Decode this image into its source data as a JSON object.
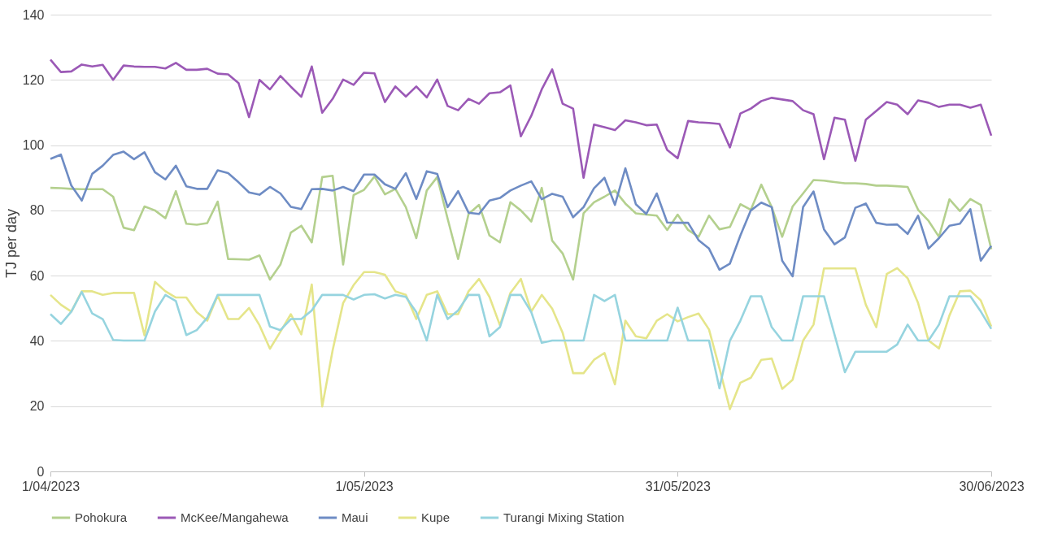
{
  "chart_data": {
    "type": "line",
    "ylabel": "TJ per day",
    "x": [
      "2023-04-01",
      "2023-04-02",
      "2023-04-03",
      "2023-04-04",
      "2023-04-05",
      "2023-04-06",
      "2023-04-07",
      "2023-04-08",
      "2023-04-09",
      "2023-04-10",
      "2023-04-11",
      "2023-04-12",
      "2023-04-13",
      "2023-04-14",
      "2023-04-15",
      "2023-04-16",
      "2023-04-17",
      "2023-04-18",
      "2023-04-19",
      "2023-04-20",
      "2023-04-21",
      "2023-04-22",
      "2023-04-23",
      "2023-04-24",
      "2023-04-25",
      "2023-04-26",
      "2023-04-27",
      "2023-04-28",
      "2023-04-29",
      "2023-04-30",
      "2023-05-01",
      "2023-05-02",
      "2023-05-03",
      "2023-05-04",
      "2023-05-05",
      "2023-05-06",
      "2023-05-07",
      "2023-05-08",
      "2023-05-09",
      "2023-05-10",
      "2023-05-11",
      "2023-05-12",
      "2023-05-13",
      "2023-05-14",
      "2023-05-15",
      "2023-05-16",
      "2023-05-17",
      "2023-05-18",
      "2023-05-19",
      "2023-05-20",
      "2023-05-21",
      "2023-05-22",
      "2023-05-23",
      "2023-05-24",
      "2023-05-25",
      "2023-05-26",
      "2023-05-27",
      "2023-05-28",
      "2023-05-29",
      "2023-05-30",
      "2023-05-31",
      "2023-06-01",
      "2023-06-02",
      "2023-06-03",
      "2023-06-04",
      "2023-06-05",
      "2023-06-06",
      "2023-06-07",
      "2023-06-08",
      "2023-06-09",
      "2023-06-10",
      "2023-06-11",
      "2023-06-12",
      "2023-06-13",
      "2023-06-14",
      "2023-06-15",
      "2023-06-16",
      "2023-06-17",
      "2023-06-18",
      "2023-06-19",
      "2023-06-20",
      "2023-06-21",
      "2023-06-22",
      "2023-06-23",
      "2023-06-24",
      "2023-06-25",
      "2023-06-26",
      "2023-06-27",
      "2023-06-28",
      "2023-06-29",
      "2023-06-30"
    ],
    "xlim": [
      "2023-04-01",
      "2023-06-30"
    ],
    "xticks": [
      {
        "value": "2023-04-01",
        "label": "1/04/2023"
      },
      {
        "value": "2023-05-01",
        "label": "1/05/2023"
      },
      {
        "value": "2023-05-31",
        "label": "31/05/2023"
      },
      {
        "value": "2023-06-30",
        "label": "30/06/2023"
      }
    ],
    "ylim": [
      0,
      140
    ],
    "yticks": [
      0,
      20,
      40,
      60,
      80,
      100,
      120,
      140
    ],
    "grid": "y",
    "legend": "bottom",
    "marker": "none",
    "line_style": "solid",
    "series": [
      {
        "name": "Pohokura",
        "color": "#b4d08e",
        "values": [
          86.9,
          86.8,
          86.6,
          86.5,
          86.5,
          86.5,
          84.2,
          74.7,
          73.9,
          81.2,
          80,
          77.6,
          85.9,
          75.9,
          75.6,
          76.1,
          82.7,
          65.1,
          65,
          64.9,
          66.2,
          58.8,
          63.4,
          73.2,
          75.3,
          70.2,
          90.2,
          90.6,
          63.4,
          84.7,
          86.3,
          90.4,
          84.9,
          86.6,
          81,
          71.5,
          86.1,
          90.2,
          77.4,
          65.1,
          78.9,
          81.7,
          72.3,
          70.2,
          82.5,
          80,
          76.6,
          86.9,
          70.7,
          66.8,
          58.8,
          79.1,
          82.5,
          84.2,
          86.1,
          82.1,
          79.1,
          78.7,
          78.4,
          74,
          78.7,
          74,
          71.9,
          78.4,
          74.2,
          74.9,
          81.9,
          80.2,
          87.9,
          81,
          71.9,
          81.2,
          85.2,
          89.3,
          89.1,
          88.7,
          88.3,
          88.3,
          88.1,
          87.6,
          87.6,
          87.4,
          87.2,
          80.2,
          76.8,
          71.9,
          83.4,
          79.8,
          83.5,
          81.7,
          68.1
        ]
      },
      {
        "name": "McKee/Mangahewa",
        "color": "#9b59b6",
        "values": [
          126.2,
          122.4,
          122.6,
          124.7,
          124.1,
          124.6,
          120,
          124.4,
          124.1,
          124,
          124,
          123.5,
          125.2,
          123.1,
          123.1,
          123.4,
          121.9,
          121.7,
          119,
          108.6,
          120,
          117.1,
          121.2,
          117.9,
          114.8,
          124.1,
          109.9,
          114.2,
          120.1,
          118.5,
          122.2,
          122,
          113.2,
          118,
          114.9,
          118,
          114.6,
          120.1,
          112,
          110.7,
          114.2,
          112.7,
          115.9,
          116.2,
          118.3,
          102.7,
          109,
          117.1,
          123.2,
          112.7,
          111.2,
          90,
          106.3,
          105.5,
          104.6,
          107.6,
          107,
          106.1,
          106.3,
          98.5,
          96,
          107.4,
          107,
          106.8,
          106.5,
          99.3,
          109.7,
          111.2,
          113.5,
          114.5,
          114,
          113.5,
          110.7,
          109.5,
          95.7,
          108.4,
          107.8,
          95.2,
          107.8,
          110.5,
          113.2,
          112.4,
          109.5,
          113.7,
          113,
          111.7,
          112.4,
          112.4,
          111.5,
          112.4,
          102.9
        ]
      },
      {
        "name": "Maui",
        "color": "#6e8cc4",
        "values": [
          95.8,
          97.1,
          87.6,
          83,
          91.2,
          93.7,
          97,
          98,
          95.7,
          97.8,
          91.7,
          89.5,
          93.7,
          87.4,
          86.6,
          86.6,
          92.3,
          91.4,
          88.6,
          85.5,
          84.8,
          87.2,
          85.2,
          81.1,
          80.4,
          86.5,
          86.6,
          86.1,
          87.2,
          85.9,
          91,
          91,
          88,
          86.6,
          91.4,
          83.5,
          92,
          91.2,
          81,
          85.9,
          79.3,
          78.9,
          83,
          83.8,
          86.1,
          87.6,
          88.9,
          83.4,
          85.1,
          84.2,
          77.9,
          81,
          86.8,
          90,
          81.7,
          92.9,
          81.9,
          78.9,
          85.2,
          76.3,
          76.2,
          76.2,
          70.9,
          68.3,
          61.8,
          63.7,
          72.3,
          80,
          82.4,
          81,
          64.6,
          59.8,
          81,
          85.8,
          74.2,
          69.6,
          71.7,
          80.8,
          82.1,
          76.2,
          75.6,
          75.7,
          72.8,
          78.4,
          68.3,
          71.5,
          75.3,
          75.9,
          80.4,
          64.6,
          69.1
        ]
      },
      {
        "name": "Kupe",
        "color": "#e5e58a",
        "values": [
          54.1,
          51.1,
          49,
          55.2,
          55.2,
          54.1,
          54.7,
          54.7,
          54.7,
          41.7,
          58.1,
          55.2,
          53.3,
          53.3,
          48.8,
          46.2,
          53.9,
          46.7,
          46.7,
          50.1,
          44.8,
          37.6,
          42.8,
          48.2,
          42,
          57.3,
          19.9,
          37.2,
          51.6,
          57.1,
          61.1,
          61.1,
          60.3,
          55.2,
          54.1,
          46.7,
          54.1,
          55.2,
          48.2,
          48.2,
          55.2,
          59,
          53.5,
          44.8,
          54.7,
          59,
          49,
          54.1,
          49.9,
          42.5,
          30.1,
          30.1,
          34.2,
          36.3,
          26.7,
          46.2,
          41.4,
          40.8,
          46.2,
          48.2,
          46,
          47.3,
          48.4,
          43.5,
          31.6,
          19.1,
          27.2,
          28.7,
          34.2,
          34.6,
          25.3,
          28.1,
          40.1,
          45,
          62.2,
          62.2,
          62.2,
          62.2,
          51.1,
          44.2,
          60.5,
          62.3,
          59.2,
          51.6,
          40.1,
          37.7,
          47.8,
          55.2,
          55.4,
          52.4,
          44.4
        ]
      },
      {
        "name": "Turangi Mixing Station",
        "color": "#96d4df",
        "values": [
          48.2,
          45.2,
          49,
          55,
          48.4,
          46.7,
          40.3,
          40.1,
          40.1,
          40.1,
          49,
          54.1,
          52.2,
          41.8,
          43.3,
          47.1,
          54.1,
          54.1,
          54.1,
          54.1,
          54.1,
          44.4,
          43.3,
          46.7,
          46.7,
          49.3,
          54.1,
          54.1,
          54.1,
          52.7,
          54.1,
          54.3,
          53,
          54.1,
          53.5,
          48.8,
          40.1,
          54.1,
          46.7,
          49.3,
          54.1,
          54.1,
          41.4,
          44.2,
          54.1,
          54.1,
          48.8,
          39.4,
          40.1,
          40.1,
          40.1,
          40.1,
          54.1,
          52.2,
          54.1,
          40.1,
          40.1,
          40.1,
          40.1,
          40.1,
          50.2,
          40.1,
          40.1,
          40.1,
          25.5,
          40.1,
          46.2,
          53.7,
          53.7,
          44.2,
          40.1,
          40.1,
          53.7,
          53.7,
          53.7,
          42,
          30.4,
          36.7,
          36.7,
          36.7,
          36.7,
          38.9,
          45,
          40.1,
          40.1,
          45,
          53.7,
          53.7,
          53.7,
          49,
          43.7
        ]
      }
    ]
  }
}
